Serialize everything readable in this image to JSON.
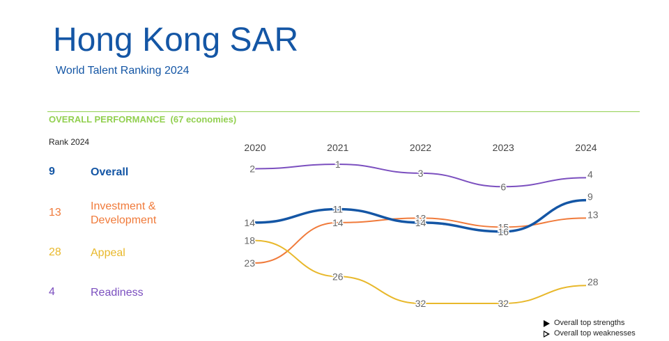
{
  "header": {
    "title": "Hong Kong SAR",
    "subtitle": "World Talent Ranking 2024"
  },
  "section": {
    "title": "OVERALL PERFORMANCE  (67 economies)"
  },
  "ranks": {
    "label": "Rank 2024",
    "items": [
      {
        "value": "9",
        "label": "Overall",
        "color": "#1456a5"
      },
      {
        "value": "13",
        "label": "Investment &\nDevelopment",
        "color": "#f07a3a"
      },
      {
        "value": "28",
        "label": "Appeal",
        "color": "#e8b82b"
      },
      {
        "value": "4",
        "label": "Readiness",
        "color": "#7b4fbf"
      }
    ]
  },
  "legend": {
    "strengths": "Overall top strengths",
    "weaknesses": "Overall top weaknesses"
  },
  "chart_data": {
    "type": "line",
    "x": [
      "2020",
      "2021",
      "2022",
      "2023",
      "2024"
    ],
    "y_inverted": true,
    "ylim": [
      1,
      33
    ],
    "grid": false,
    "series": [
      {
        "name": "Readiness",
        "color": "#7b4fbf",
        "values": [
          2,
          1,
          3,
          6,
          4
        ]
      },
      {
        "name": "Investment & Development",
        "color": "#f07a3a",
        "values": [
          23,
          14,
          13,
          15,
          13
        ]
      },
      {
        "name": "Appeal",
        "color": "#e8b82b",
        "values": [
          18,
          26,
          32,
          32,
          28
        ]
      },
      {
        "name": "Overall",
        "color": "#1456a5",
        "values": [
          14,
          11,
          14,
          16,
          9
        ]
      }
    ]
  }
}
